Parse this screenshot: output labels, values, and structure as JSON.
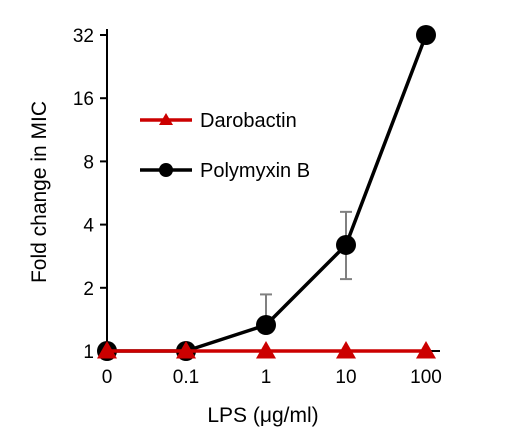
{
  "chart_data": {
    "type": "line",
    "xlabel": "LPS (μg/ml)",
    "ylabel": "Fold change in MIC",
    "x_categories": [
      "0",
      "0.1",
      "1",
      "10",
      "100"
    ],
    "y_scale": "log2",
    "y_ticks": [
      1,
      2,
      4,
      8,
      16,
      32
    ],
    "y_tick_labels": [
      "1",
      "2",
      "4",
      "8",
      "16",
      "32"
    ],
    "ylim": [
      1,
      32
    ],
    "grid": false,
    "legend_position": "upper-left",
    "series": [
      {
        "name": "Darobactin",
        "color": "#cc0000",
        "marker": "triangle",
        "values": [
          1,
          1,
          1,
          1,
          1
        ]
      },
      {
        "name": "Polymyxin B",
        "color": "#000000",
        "marker": "circle",
        "values": [
          1,
          1,
          1.33,
          3.2,
          32
        ],
        "error_upper": [
          null,
          null,
          1.86,
          4.6,
          null
        ],
        "error_lower": [
          null,
          null,
          1.33,
          2.2,
          null
        ]
      }
    ]
  }
}
